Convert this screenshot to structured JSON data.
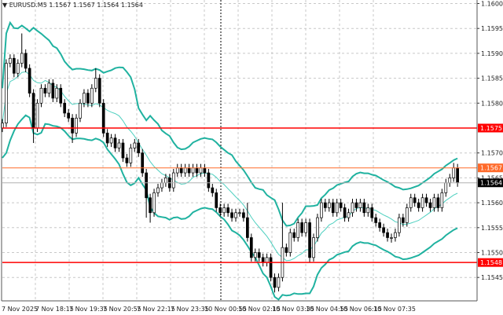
{
  "header": {
    "dropdown_icon": "triangle-down-icon",
    "symbol": "EURUSD.M5",
    "ohlc": "1.1567 1.1567 1.1564 1.1564"
  },
  "chart_data": {
    "type": "candlestick",
    "symbol": "EURUSD",
    "timeframe": "M5",
    "ylim": [
      1.154,
      1.1601
    ],
    "yticks": [
      "1.1600",
      "1.1595",
      "1.1590",
      "1.1585",
      "1.1580",
      "1.1570",
      "1.1565",
      "1.1560",
      "1.1555",
      "1.1550",
      "1.1545"
    ],
    "xticks": [
      "7 Nov 2025",
      "7 Nov 18:15",
      "7 Nov 19:35",
      "7 Nov 20:55",
      "7 Nov 22:15",
      "7 Nov 23:35",
      "10 Nov 00:55",
      "10 Nov 02:15",
      "10 Nov 03:35",
      "10 Nov 04:55",
      "10 Nov 06:15",
      "10 Nov 07:35"
    ],
    "grid": true,
    "first_open": 1.1575,
    "closes": [
      1.1576,
      1.1588,
      1.1589,
      1.1586,
      1.1588,
      1.159,
      1.1587,
      1.1582,
      1.1575,
      1.158,
      1.1583,
      1.1582,
      1.1584,
      1.1581,
      1.1583,
      1.158,
      1.1578,
      1.1577,
      1.1574,
      1.1577,
      1.158,
      1.1582,
      1.158,
      1.1583,
      1.1585,
      1.158,
      1.1574,
      1.1572,
      1.1573,
      1.1571,
      1.1572,
      1.1569,
      1.1568,
      1.1571,
      1.1572,
      1.157,
      1.1566,
      1.1561,
      1.1558,
      1.1562,
      1.1563,
      1.1564,
      1.1565,
      1.1563,
      1.1566,
      1.1567,
      1.1566,
      1.1567,
      1.1566,
      1.1567,
      1.1566,
      1.1567,
      1.1566,
      1.1563,
      1.1562,
      1.1559,
      1.1558,
      1.1559,
      1.1558,
      1.1557,
      1.1558,
      1.1558,
      1.1557,
      1.1553,
      1.1549,
      1.155,
      1.1549,
      1.1548,
      1.1549,
      1.1545,
      1.1543,
      1.1545,
      1.1551,
      1.155,
      1.1554,
      1.1553,
      1.1556,
      1.1554,
      1.1556,
      1.1549,
      1.1553,
      1.1557,
      1.156,
      1.1559,
      1.156,
      1.1558,
      1.156,
      1.1559,
      1.1557,
      1.1558,
      1.156,
      1.1559,
      1.156,
      1.1558,
      1.1559,
      1.1557,
      1.1556,
      1.1555,
      1.1554,
      1.1553,
      1.1553,
      1.1554,
      1.1557,
      1.1556,
      1.1559,
      1.1561,
      1.156,
      1.1559,
      1.1561,
      1.156,
      1.1559,
      1.1561,
      1.1559,
      1.1562,
      1.1564,
      1.1565,
      1.1567,
      1.1564
    ],
    "wick_extremes": [
      {
        "bar": 5,
        "high": 1.1594
      },
      {
        "bar": 8,
        "low": 1.1572
      },
      {
        "bar": 18,
        "low": 1.1572
      },
      {
        "bar": 24,
        "high": 1.1587
      },
      {
        "bar": 37,
        "low": 1.1557
      },
      {
        "bar": 38,
        "low": 1.1556
      },
      {
        "bar": 63,
        "high": 1.156
      },
      {
        "bar": 70,
        "low": 1.1542
      },
      {
        "bar": 72,
        "high": 1.156
      },
      {
        "bar": 79,
        "low": 1.1548
      },
      {
        "bar": 100,
        "low": 1.1552
      },
      {
        "bar": 116,
        "high": 1.1568
      }
    ],
    "indicator": {
      "type": "bollinger",
      "band_color": "#20b2a0",
      "middle_color": "#4fd0c0"
    },
    "levels": [
      {
        "price": 1.1575,
        "label": "1.1575",
        "color": "#ff0000"
      },
      {
        "price": 1.1567,
        "label": "1.1567",
        "color": "#ff6a2a"
      },
      {
        "price": 1.1548,
        "label": "1.1548",
        "color": "#ff0000"
      }
    ],
    "current_price": {
      "price": 1.1564,
      "label": "1.1564",
      "color": "#000000"
    }
  }
}
